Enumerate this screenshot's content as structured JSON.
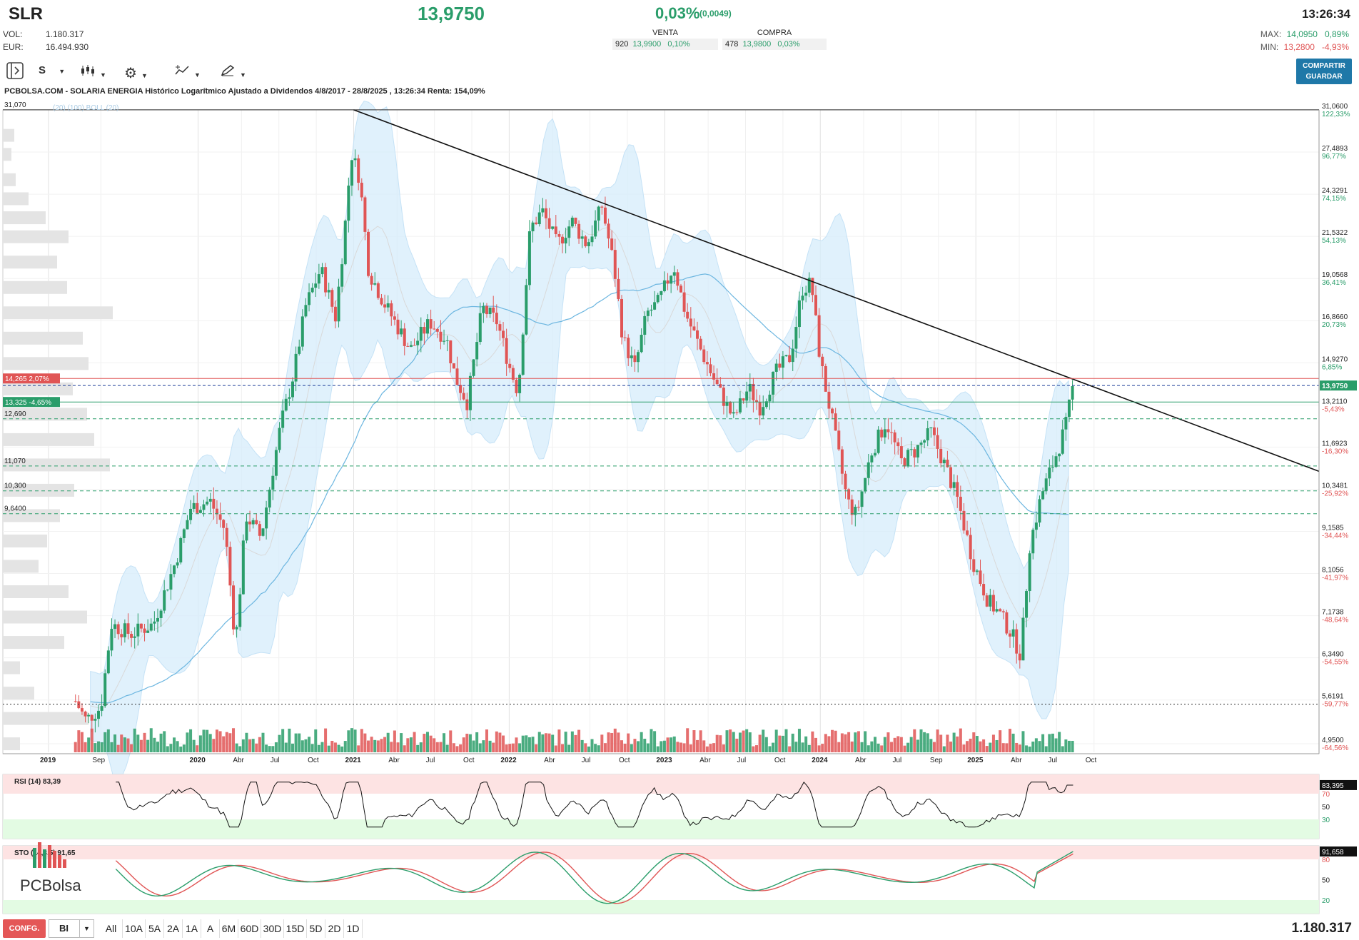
{
  "header": {
    "symbol": "SLR",
    "last_price": "13,9750",
    "change_pct": "0,03%",
    "change_abs": "(0,0049)",
    "time": "13:26:34",
    "vol_label": "VOL:",
    "vol_value": "1.180.317",
    "eur_label": "EUR:",
    "eur_value": "16.494.930",
    "venta_label": "VENTA",
    "venta_qty": "920",
    "venta_price": "13,9900",
    "venta_pct": "0,10%",
    "compra_label": "COMPRA",
    "compra_qty": "478",
    "compra_price": "13,9800",
    "compra_pct": "0,03%",
    "max_label": "MAX:",
    "max_value": "14,0950",
    "max_pct": "0,89%",
    "min_label": "MIN:",
    "min_value": "13,2800",
    "min_pct": "-4,93%"
  },
  "toolbar": {
    "period_label": "S",
    "share_label_1": "COMPARTIR",
    "share_label_2": "GUARDAR"
  },
  "chart_title": "PCBOLSA.COM - SOLARIA ENERGIA Histórico Logarítmico Ajustado a Dividendos 4/8/2017 - 28/8/2025 , 13:26:34 Renta: 154,09%",
  "indicator_label": "(20) (100) BOLL (20)",
  "bottom": {
    "config": "CONFG.",
    "interval": "BI",
    "ranges": [
      "All",
      "10A",
      "5A",
      "2A",
      "1A",
      "A",
      "6M",
      "60D",
      "30D",
      "15D",
      "5D",
      "2D",
      "1D"
    ],
    "volume": "1.180.317"
  },
  "logo_text": "PCBolsa",
  "colors": {
    "up": "#2a9d6a",
    "down": "#e05555",
    "band": "#d6ecfb",
    "ma": "#6cb6e0"
  },
  "chart_data": {
    "type": "line",
    "scale": "log",
    "ylim": [
      4.95,
      31.06
    ],
    "price_axis_ticks": [
      {
        "v": 31.06,
        "label": "31,0600",
        "pct": "122,33%"
      },
      {
        "v": 27.4893,
        "label": "27,4893",
        "pct": "96,77%"
      },
      {
        "v": 24.3291,
        "label": "24,3291",
        "pct": "74,15%"
      },
      {
        "v": 21.5322,
        "label": "21,5322",
        "pct": "54,13%"
      },
      {
        "v": 19.0568,
        "label": "19,0568",
        "pct": "36,41%"
      },
      {
        "v": 16.866,
        "label": "16,8660",
        "pct": "20,73%"
      },
      {
        "v": 14.927,
        "label": "14,9270",
        "pct": "6,85%"
      },
      {
        "v": 13.211,
        "label": "13,2110",
        "pct": "-5,43%"
      },
      {
        "v": 11.6923,
        "label": "11,6923",
        "pct": "-16,30%"
      },
      {
        "v": 10.3481,
        "label": "10,3481",
        "pct": "-25,92%"
      },
      {
        "v": 9.1585,
        "label": "9,1585",
        "pct": "-34,44%"
      },
      {
        "v": 8.1056,
        "label": "8,1056",
        "pct": "-41,97%"
      },
      {
        "v": 7.1738,
        "label": "7,1738",
        "pct": "-48,64%"
      },
      {
        "v": 6.349,
        "label": "6,3490",
        "pct": "-54,55%"
      },
      {
        "v": 5.6191,
        "label": "5,6191",
        "pct": "-59,77%"
      },
      {
        "v": 4.95,
        "label": "4,9500",
        "pct": "-64,56%"
      }
    ],
    "last_label": "13,9750",
    "levels": [
      {
        "label": "31,070",
        "v": 31.07,
        "style": "solid"
      },
      {
        "label": "14,265  2,07%",
        "v": 14.265,
        "style": "red-box"
      },
      {
        "label": "13,325  -4,65%",
        "v": 13.325,
        "style": "green-box"
      },
      {
        "label": "12,690",
        "v": 12.69,
        "style": "dash"
      },
      {
        "label": "11,070",
        "v": 11.07,
        "style": "dash"
      },
      {
        "label": "10,300",
        "v": 10.3,
        "style": "dash"
      },
      {
        "label": "9,6400",
        "v": 9.64,
        "style": "dash"
      },
      {
        "label": "",
        "v": 5.55,
        "style": "dots"
      }
    ],
    "x_labels": [
      {
        "t": 0.0,
        "label": "2019",
        "bold": true
      },
      {
        "t": 0.35,
        "label": "Sep",
        "bold": false
      },
      {
        "t": 1.0,
        "label": "2020",
        "bold": true
      },
      {
        "t": 1.29,
        "label": "Abr",
        "bold": false
      },
      {
        "t": 1.54,
        "label": "Jul",
        "bold": false
      },
      {
        "t": 1.79,
        "label": "Oct",
        "bold": false
      },
      {
        "t": 2.04,
        "label": "2021",
        "bold": true
      },
      {
        "t": 2.33,
        "label": "Abr",
        "bold": false
      },
      {
        "t": 2.58,
        "label": "Jul",
        "bold": false
      },
      {
        "t": 2.83,
        "label": "Oct",
        "bold": false
      },
      {
        "t": 3.08,
        "label": "2022",
        "bold": true
      },
      {
        "t": 3.37,
        "label": "Abr",
        "bold": false
      },
      {
        "t": 3.62,
        "label": "Jul",
        "bold": false
      },
      {
        "t": 3.87,
        "label": "Oct",
        "bold": false
      },
      {
        "t": 4.12,
        "label": "2023",
        "bold": true
      },
      {
        "t": 4.41,
        "label": "Abr",
        "bold": false
      },
      {
        "t": 4.66,
        "label": "Jul",
        "bold": false
      },
      {
        "t": 4.91,
        "label": "Oct",
        "bold": false
      },
      {
        "t": 5.16,
        "label": "2024",
        "bold": true
      },
      {
        "t": 5.45,
        "label": "Abr",
        "bold": false
      },
      {
        "t": 5.7,
        "label": "Jul",
        "bold": false
      },
      {
        "t": 5.95,
        "label": "Sep",
        "bold": false
      },
      {
        "t": 6.2,
        "label": "2025",
        "bold": true
      },
      {
        "t": 6.49,
        "label": "Abr",
        "bold": false
      },
      {
        "t": 6.74,
        "label": "Jul",
        "bold": false
      },
      {
        "t": 6.99,
        "label": "Oct",
        "bold": false
      }
    ],
    "price_path": [
      [
        0.18,
        5.6
      ],
      [
        0.25,
        5.3
      ],
      [
        0.35,
        5.5
      ],
      [
        0.42,
        7.0
      ],
      [
        0.55,
        6.8
      ],
      [
        0.7,
        7.0
      ],
      [
        0.85,
        8.4
      ],
      [
        0.95,
        9.8
      ],
      [
        1.08,
        10.0
      ],
      [
        1.18,
        9.2
      ],
      [
        1.25,
        6.6
      ],
      [
        1.32,
        9.6
      ],
      [
        1.42,
        9.0
      ],
      [
        1.55,
        12.4
      ],
      [
        1.64,
        14.5
      ],
      [
        1.72,
        17.6
      ],
      [
        1.82,
        19.6
      ],
      [
        1.92,
        17.0
      ],
      [
        2.0,
        24.0
      ],
      [
        2.02,
        27.6
      ],
      [
        2.08,
        25.5
      ],
      [
        2.14,
        19.5
      ],
      [
        2.24,
        17.8
      ],
      [
        2.3,
        17.0
      ],
      [
        2.42,
        15.5
      ],
      [
        2.55,
        16.8
      ],
      [
        2.66,
        16.0
      ],
      [
        2.72,
        14.3
      ],
      [
        2.8,
        13.3
      ],
      [
        2.9,
        17.5
      ],
      [
        3.0,
        16.8
      ],
      [
        3.08,
        14.8
      ],
      [
        3.14,
        13.7
      ],
      [
        3.22,
        22.0
      ],
      [
        3.3,
        23.2
      ],
      [
        3.4,
        21.0
      ],
      [
        3.5,
        22.5
      ],
      [
        3.6,
        21.0
      ],
      [
        3.7,
        23.5
      ],
      [
        3.78,
        19.8
      ],
      [
        3.84,
        16.0
      ],
      [
        3.92,
        14.7
      ],
      [
        4.0,
        17.2
      ],
      [
        4.08,
        17.8
      ],
      [
        4.18,
        19.8
      ],
      [
        4.26,
        17.2
      ],
      [
        4.36,
        15.5
      ],
      [
        4.48,
        13.8
      ],
      [
        4.58,
        12.7
      ],
      [
        4.68,
        13.9
      ],
      [
        4.76,
        13.1
      ],
      [
        4.86,
        14.5
      ],
      [
        4.96,
        15.2
      ],
      [
        5.04,
        18.5
      ],
      [
        5.1,
        18.8
      ],
      [
        5.16,
        15.0
      ],
      [
        5.24,
        12.6
      ],
      [
        5.34,
        10.0
      ],
      [
        5.4,
        9.6
      ],
      [
        5.5,
        11.5
      ],
      [
        5.6,
        12.6
      ],
      [
        5.7,
        11.2
      ],
      [
        5.8,
        11.6
      ],
      [
        5.9,
        12.2
      ],
      [
        6.0,
        11.0
      ],
      [
        6.08,
        10.0
      ],
      [
        6.18,
        8.4
      ],
      [
        6.28,
        7.5
      ],
      [
        6.36,
        7.2
      ],
      [
        6.44,
        6.8
      ],
      [
        6.5,
        6.4
      ],
      [
        6.56,
        8.8
      ],
      [
        6.64,
        10.2
      ],
      [
        6.72,
        11.2
      ],
      [
        6.8,
        12.4
      ],
      [
        6.85,
        13.975
      ]
    ],
    "trendline": [
      [
        2.04,
        31.07
      ],
      [
        7.5,
        10.9
      ]
    ],
    "rsi": {
      "name": "RSI (14)",
      "value": "83,39",
      "last_label": "83,395",
      "levels": [
        70,
        50,
        30
      ]
    },
    "sto": {
      "name": "STO",
      "params": "(14,3,5)",
      "value": "91,65",
      "last_label": "91,658",
      "levels": [
        80,
        50,
        20
      ]
    }
  }
}
